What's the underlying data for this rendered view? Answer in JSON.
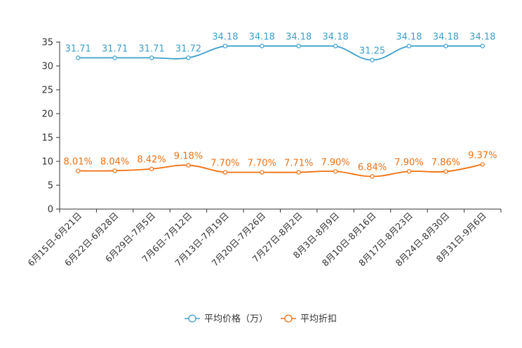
{
  "chart_data": {
    "type": "line",
    "title": "",
    "xlabel": "",
    "ylabel": "",
    "ylim": [
      0,
      35
    ],
    "yticks": [
      0,
      5,
      10,
      15,
      20,
      25,
      30,
      35
    ],
    "categories": [
      "6月15日-6月21日",
      "6月22日-6月28日",
      "6月29日-7月5日",
      "7月6日-7月12日",
      "7月13日-7月19日",
      "7月20日-7月26日",
      "7月27日-8月2日",
      "8月3日-8月9日",
      "8月10日-8月16日",
      "8月17日-8月23日",
      "8月24日-8月30日",
      "8月31日-9月6日"
    ],
    "series": [
      {
        "name": "平均价格（万）",
        "color": "#3d9fcb",
        "values": [
          31.71,
          31.71,
          31.71,
          31.72,
          34.18,
          34.18,
          34.18,
          34.18,
          31.25,
          34.18,
          34.18,
          34.18
        ],
        "labels": [
          "31.71",
          "31.71",
          "31.71",
          "31.72",
          "34.18",
          "34.18",
          "34.18",
          "34.18",
          "31.25",
          "34.18",
          "34.18",
          "34.18"
        ]
      },
      {
        "name": "平均折扣",
        "color": "#f07010",
        "values": [
          8.01,
          8.04,
          8.42,
          9.18,
          7.7,
          7.7,
          7.71,
          7.9,
          6.84,
          7.9,
          7.86,
          9.37
        ],
        "labels": [
          "8.01%",
          "8.04%",
          "8.42%",
          "9.18%",
          "7.70%",
          "7.70%",
          "7.71%",
          "7.90%",
          "6.84%",
          "7.90%",
          "7.86%",
          "9.37%"
        ]
      }
    ],
    "legend": "bottom-center",
    "grid": false
  }
}
